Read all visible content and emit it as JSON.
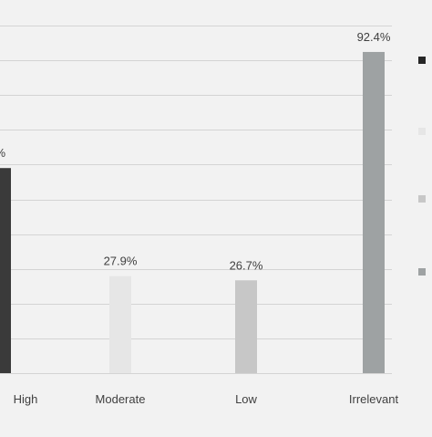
{
  "chart_data": {
    "type": "bar",
    "categories": [
      "High",
      "Moderate",
      "Low",
      "Irrelevant"
    ],
    "values": [
      59.0,
      27.9,
      26.7,
      92.4
    ],
    "value_labels": [
      "%",
      "27.9%",
      "26.7%",
      "92.4%"
    ],
    "bar_colors": [
      "#3a3a3a",
      "#e6e6e6",
      "#c7c7c7",
      "#9ea2a3"
    ],
    "ylim": [
      0,
      100
    ],
    "grid": true,
    "legend_placement": "right",
    "legend_colors": [
      "#262626",
      "#e6e6e6",
      "#c7c7c7",
      "#9ea2a3"
    ],
    "colors": {
      "background": "#f2f2f2",
      "gridline": "#d4d4d4",
      "axis_text": "#404040"
    }
  }
}
